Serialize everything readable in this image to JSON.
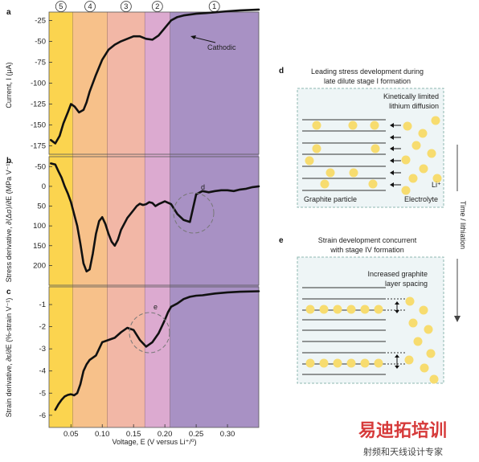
{
  "figure": {
    "panels": {
      "a": "a",
      "b": "b",
      "c": "c",
      "d": "d",
      "e": "e"
    },
    "stage_numbers": [
      "5",
      "4",
      "3",
      "2",
      "1"
    ],
    "stage_boundaries_V": [
      0.015,
      0.053,
      0.108,
      0.168,
      0.208,
      0.35
    ],
    "stage_colors": [
      "#fbd44f",
      "#f7c18a",
      "#f2b7a6",
      "#dcaad0",
      "#a891c4"
    ],
    "x_axis_label": "Voltage, E (V versus Li⁺/⁰)",
    "x_ticks": [
      "0.05",
      "0.10",
      "0.15",
      "0.20",
      "0.25",
      "0.30"
    ],
    "annotation_cathodic": "Cathodic",
    "circle_label_d": "d",
    "circle_label_e": "e",
    "line_color": "#111111"
  },
  "chart_data": [
    {
      "type": "line",
      "panel": "a",
      "ylabel": "Current, I (μA)",
      "xlim": [
        0.015,
        0.35
      ],
      "ylim": [
        -185,
        -15
      ],
      "y_ticks": [
        "-25",
        "-50",
        "-75",
        "-100",
        "-125",
        "-150",
        "-175"
      ],
      "x": [
        0.018,
        0.025,
        0.032,
        0.038,
        0.045,
        0.05,
        0.056,
        0.063,
        0.07,
        0.075,
        0.08,
        0.09,
        0.1,
        0.11,
        0.12,
        0.13,
        0.14,
        0.15,
        0.16,
        0.17,
        0.18,
        0.19,
        0.2,
        0.21,
        0.22,
        0.23,
        0.25,
        0.27,
        0.3,
        0.32,
        0.35
      ],
      "values": [
        -168,
        -172,
        -163,
        -148,
        -135,
        -125,
        -128,
        -135,
        -132,
        -123,
        -110,
        -90,
        -72,
        -60,
        -54,
        -50,
        -47,
        -44,
        -44,
        -47,
        -48,
        -43,
        -34,
        -25,
        -21,
        -19,
        -17,
        -16,
        -14,
        -13,
        -12
      ]
    },
    {
      "type": "line",
      "panel": "b",
      "ylabel": "Stress derivative, ∂⟨Δσ⟩/∂E (MPa V⁻¹)",
      "xlim": [
        0.015,
        0.35
      ],
      "ylim": [
        250,
        -75
      ],
      "y_ticks": [
        "-50",
        "0",
        "50",
        "100",
        "150",
        "200"
      ],
      "x": [
        0.018,
        0.025,
        0.03,
        0.035,
        0.04,
        0.045,
        0.05,
        0.055,
        0.06,
        0.065,
        0.07,
        0.075,
        0.08,
        0.085,
        0.09,
        0.095,
        0.1,
        0.105,
        0.11,
        0.115,
        0.12,
        0.125,
        0.13,
        0.14,
        0.15,
        0.155,
        0.16,
        0.165,
        0.17,
        0.175,
        0.18,
        0.185,
        0.19,
        0.2,
        0.21,
        0.22,
        0.23,
        0.24,
        0.245,
        0.25,
        0.26,
        0.27,
        0.28,
        0.29,
        0.3,
        0.31,
        0.32,
        0.33,
        0.34,
        0.35
      ],
      "values": [
        -58,
        -55,
        -38,
        -22,
        0,
        18,
        40,
        70,
        100,
        145,
        195,
        215,
        210,
        170,
        120,
        88,
        78,
        95,
        120,
        140,
        150,
        135,
        110,
        80,
        60,
        50,
        44,
        47,
        45,
        40,
        42,
        50,
        45,
        38,
        45,
        70,
        85,
        90,
        55,
        20,
        12,
        15,
        12,
        10,
        10,
        12,
        8,
        6,
        2,
        0
      ]
    },
    {
      "type": "line",
      "panel": "c",
      "ylabel": "Strain derivative, ∂ε/∂E (%-strain V⁻¹)",
      "xlim": [
        0.015,
        0.35
      ],
      "ylim": [
        -6.55,
        -0.2
      ],
      "y_ticks": [
        "-1",
        "-2",
        "-3",
        "-4",
        "-5",
        "-6"
      ],
      "x": [
        0.025,
        0.03,
        0.035,
        0.04,
        0.045,
        0.05,
        0.055,
        0.06,
        0.065,
        0.07,
        0.075,
        0.08,
        0.09,
        0.1,
        0.11,
        0.12,
        0.13,
        0.14,
        0.15,
        0.16,
        0.17,
        0.18,
        0.19,
        0.2,
        0.205,
        0.21,
        0.22,
        0.23,
        0.24,
        0.25,
        0.26,
        0.28,
        0.3,
        0.32,
        0.35
      ],
      "values": [
        -5.75,
        -5.5,
        -5.3,
        -5.15,
        -5.08,
        -5.05,
        -5.1,
        -5.0,
        -4.6,
        -4.0,
        -3.7,
        -3.5,
        -3.3,
        -2.7,
        -2.6,
        -2.5,
        -2.25,
        -2.05,
        -2.15,
        -2.6,
        -2.9,
        -2.7,
        -2.3,
        -1.7,
        -1.35,
        -1.1,
        -0.95,
        -0.75,
        -0.65,
        -0.6,
        -0.58,
        -0.5,
        -0.45,
        -0.42,
        -0.4
      ]
    }
  ],
  "schematic": {
    "d": {
      "title_line1": "Leading stress development during",
      "title_line2": "late dilute stage I formation",
      "callout_line1": "Kinetically limited",
      "callout_line2": "lithium diffusion",
      "label_graphite": "Graphite particle",
      "label_electrolyte": "Electrolyte",
      "label_li": "Li⁺"
    },
    "e": {
      "title_line1": "Strain development concurrent",
      "title_line2": "with stage IV formation",
      "callout_line1": "Increased graphite",
      "callout_line2": "layer spacing"
    },
    "time_arrow_label": "Time / lithiation",
    "sphere_color": "#f7dc6f",
    "box_fill": "#eef5f6",
    "box_border": "#8fb8b2"
  },
  "watermark": {
    "line1": "易迪拓培训",
    "line2": "射频和天线设计专家",
    "color_red": "#d63a3a",
    "color_gray": "#9a9a9a"
  }
}
